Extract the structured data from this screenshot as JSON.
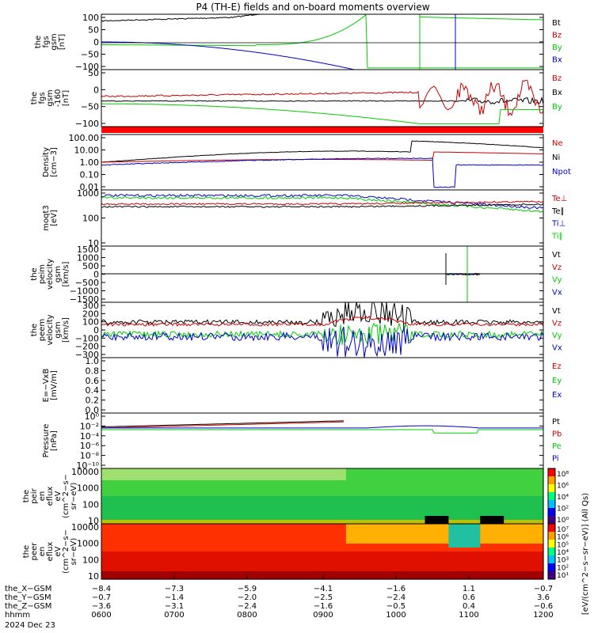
{
  "title": "P4 (TH-E) fields and on-board moments overview",
  "colors": {
    "black": "#000000",
    "red": "#cc0000",
    "green": "#00cc00",
    "blue": "#0000cc",
    "bar": "#ff0000"
  },
  "chart_data": [
    {
      "type": "line",
      "ylabel_lines": [
        "the",
        "fgs",
        "gsm",
        "[nT]"
      ],
      "ylim": [
        -100,
        100
      ],
      "ticks": [
        "100",
        "50",
        "0",
        "−50",
        "−100"
      ],
      "series": [
        {
          "name": "Bt",
          "color": "black"
        },
        {
          "name": "Bz",
          "color": "red"
        },
        {
          "name": "By",
          "color": "green"
        },
        {
          "name": "Bx",
          "color": "blue"
        }
      ]
    },
    {
      "type": "line",
      "ylabel_lines": [
        "the",
        "fgs",
        "gsm",
        "-160",
        "[nT]"
      ],
      "ylim": [
        -130,
        60
      ],
      "ticks": [
        "50",
        "0",
        "−50",
        "−100"
      ],
      "series": [
        {
          "name": "Bz",
          "color": "red"
        },
        {
          "name": "Bx",
          "color": "black"
        },
        {
          "name": "By",
          "color": "green"
        }
      ]
    },
    {
      "type": "line",
      "ylabel_lines": [
        "Density",
        "[cm−3]"
      ],
      "ylim": [
        0.003,
        150
      ],
      "log": true,
      "ticks": [
        "100.00",
        "10.00",
        "1.00",
        "0.10",
        "0.01"
      ],
      "series": [
        {
          "name": "Ne",
          "color": "red"
        },
        {
          "name": "Ni",
          "color": "black"
        },
        {
          "name": "Npot",
          "color": "blue"
        }
      ]
    },
    {
      "type": "line",
      "ylabel_lines": [
        "moqt3",
        "[eV]"
      ],
      "ylim": [
        4,
        3000
      ],
      "log": true,
      "ticks": [
        "1000",
        "100",
        "10"
      ],
      "series": [
        {
          "name": "Te⊥",
          "color": "red"
        },
        {
          "name": "Te∥",
          "color": "black"
        },
        {
          "name": "Ti⊥",
          "color": "blue"
        },
        {
          "name": "Ti∥",
          "color": "green"
        }
      ]
    },
    {
      "type": "line",
      "ylabel_lines": [
        "the",
        "peim",
        "velocity",
        "gsm",
        "[km/s]"
      ],
      "ylim": [
        -1500,
        1500
      ],
      "ticks": [
        "1500",
        "1000",
        "500",
        "0",
        "−500",
        "−1000",
        "−1500"
      ],
      "series": [
        {
          "name": "Vt",
          "color": "black"
        },
        {
          "name": "Vz",
          "color": "red"
        },
        {
          "name": "Vy",
          "color": "green"
        },
        {
          "name": "Vx",
          "color": "blue"
        }
      ]
    },
    {
      "type": "line",
      "ylabel_lines": [
        "the",
        "peem",
        "velocity",
        "gsm",
        "[km/s]"
      ],
      "ylim": [
        -300,
        300
      ],
      "ticks": [
        "300",
        "200",
        "100",
        "0",
        "−100",
        "−200",
        "−300"
      ],
      "series": [
        {
          "name": "Vt",
          "color": "black"
        },
        {
          "name": "Vz",
          "color": "red"
        },
        {
          "name": "Vy",
          "color": "green"
        },
        {
          "name": "Vx",
          "color": "blue"
        }
      ]
    },
    {
      "type": "line",
      "ylabel_lines": [
        "E=−VxB",
        "[mV/m]"
      ],
      "ylim": [
        0,
        1
      ],
      "ticks": [
        "1.0",
        "0.8",
        "0.6",
        "0.4",
        "0.2",
        "0.0"
      ],
      "series": [
        {
          "name": "Ez",
          "color": "red"
        },
        {
          "name": "Ey",
          "color": "green"
        },
        {
          "name": "Ex",
          "color": "blue"
        }
      ]
    },
    {
      "type": "line",
      "ylabel_lines": [
        "Pressure",
        "[nPa]"
      ],
      "ylim": [
        1e-10,
        10
      ],
      "log": true,
      "ticks": [
        "10⁰",
        "10⁻²",
        "10⁻⁴",
        "10⁻⁶",
        "10⁻⁸",
        "10⁻¹⁰"
      ],
      "series": [
        {
          "name": "Pt",
          "color": "black"
        },
        {
          "name": "Pb",
          "color": "red"
        },
        {
          "name": "Pe",
          "color": "green"
        },
        {
          "name": "Pi",
          "color": "blue"
        }
      ]
    },
    {
      "type": "heatmap",
      "ylabel_lines": [
        "the",
        "peir",
        "en",
        "eflux",
        "eV",
        "(cm^2−s−",
        "sr−eV)"
      ],
      "ticks": [
        "10000",
        "1000",
        "100",
        "10"
      ],
      "colorbar_ticks": [
        "10⁸",
        "10⁶",
        "10⁴",
        "10²",
        "10⁰"
      ]
    },
    {
      "type": "heatmap",
      "ylabel_lines": [
        "the",
        "peer",
        "en",
        "eflux",
        "eV",
        "(cm^2−s−",
        "sr−eV)"
      ],
      "ticks": [
        "10000",
        "1000",
        "100",
        "10"
      ],
      "colorbar_ticks": [
        "10⁷",
        "10⁶",
        "10⁵",
        "10⁴",
        "10³",
        "10²",
        "10¹"
      ]
    }
  ],
  "colorbar_label": "[eV/(cm^2−s−sr−eV)]  (All Qs)",
  "x_axis": {
    "rows": [
      {
        "label": "the_X−GSM",
        "values": [
          "−8.4",
          "−7.3",
          "−5.9",
          "−4.1",
          "−1.6",
          "1.1",
          "−0.7"
        ]
      },
      {
        "label": "the_Y−GSM",
        "values": [
          "−0.7",
          "−1.4",
          "−2.0",
          "−2.5",
          "−2.4",
          "0.6",
          "3.6"
        ]
      },
      {
        "label": "the_Z−GSM",
        "values": [
          "−3.6",
          "−3.1",
          "−2.4",
          "−1.6",
          "−0.5",
          "0.4",
          "−0.6"
        ]
      },
      {
        "label": "hhmm",
        "values": [
          "0600",
          "0700",
          "0800",
          "0900",
          "1000",
          "1100",
          "1200"
        ]
      }
    ],
    "date": "2024 Dec 23"
  }
}
